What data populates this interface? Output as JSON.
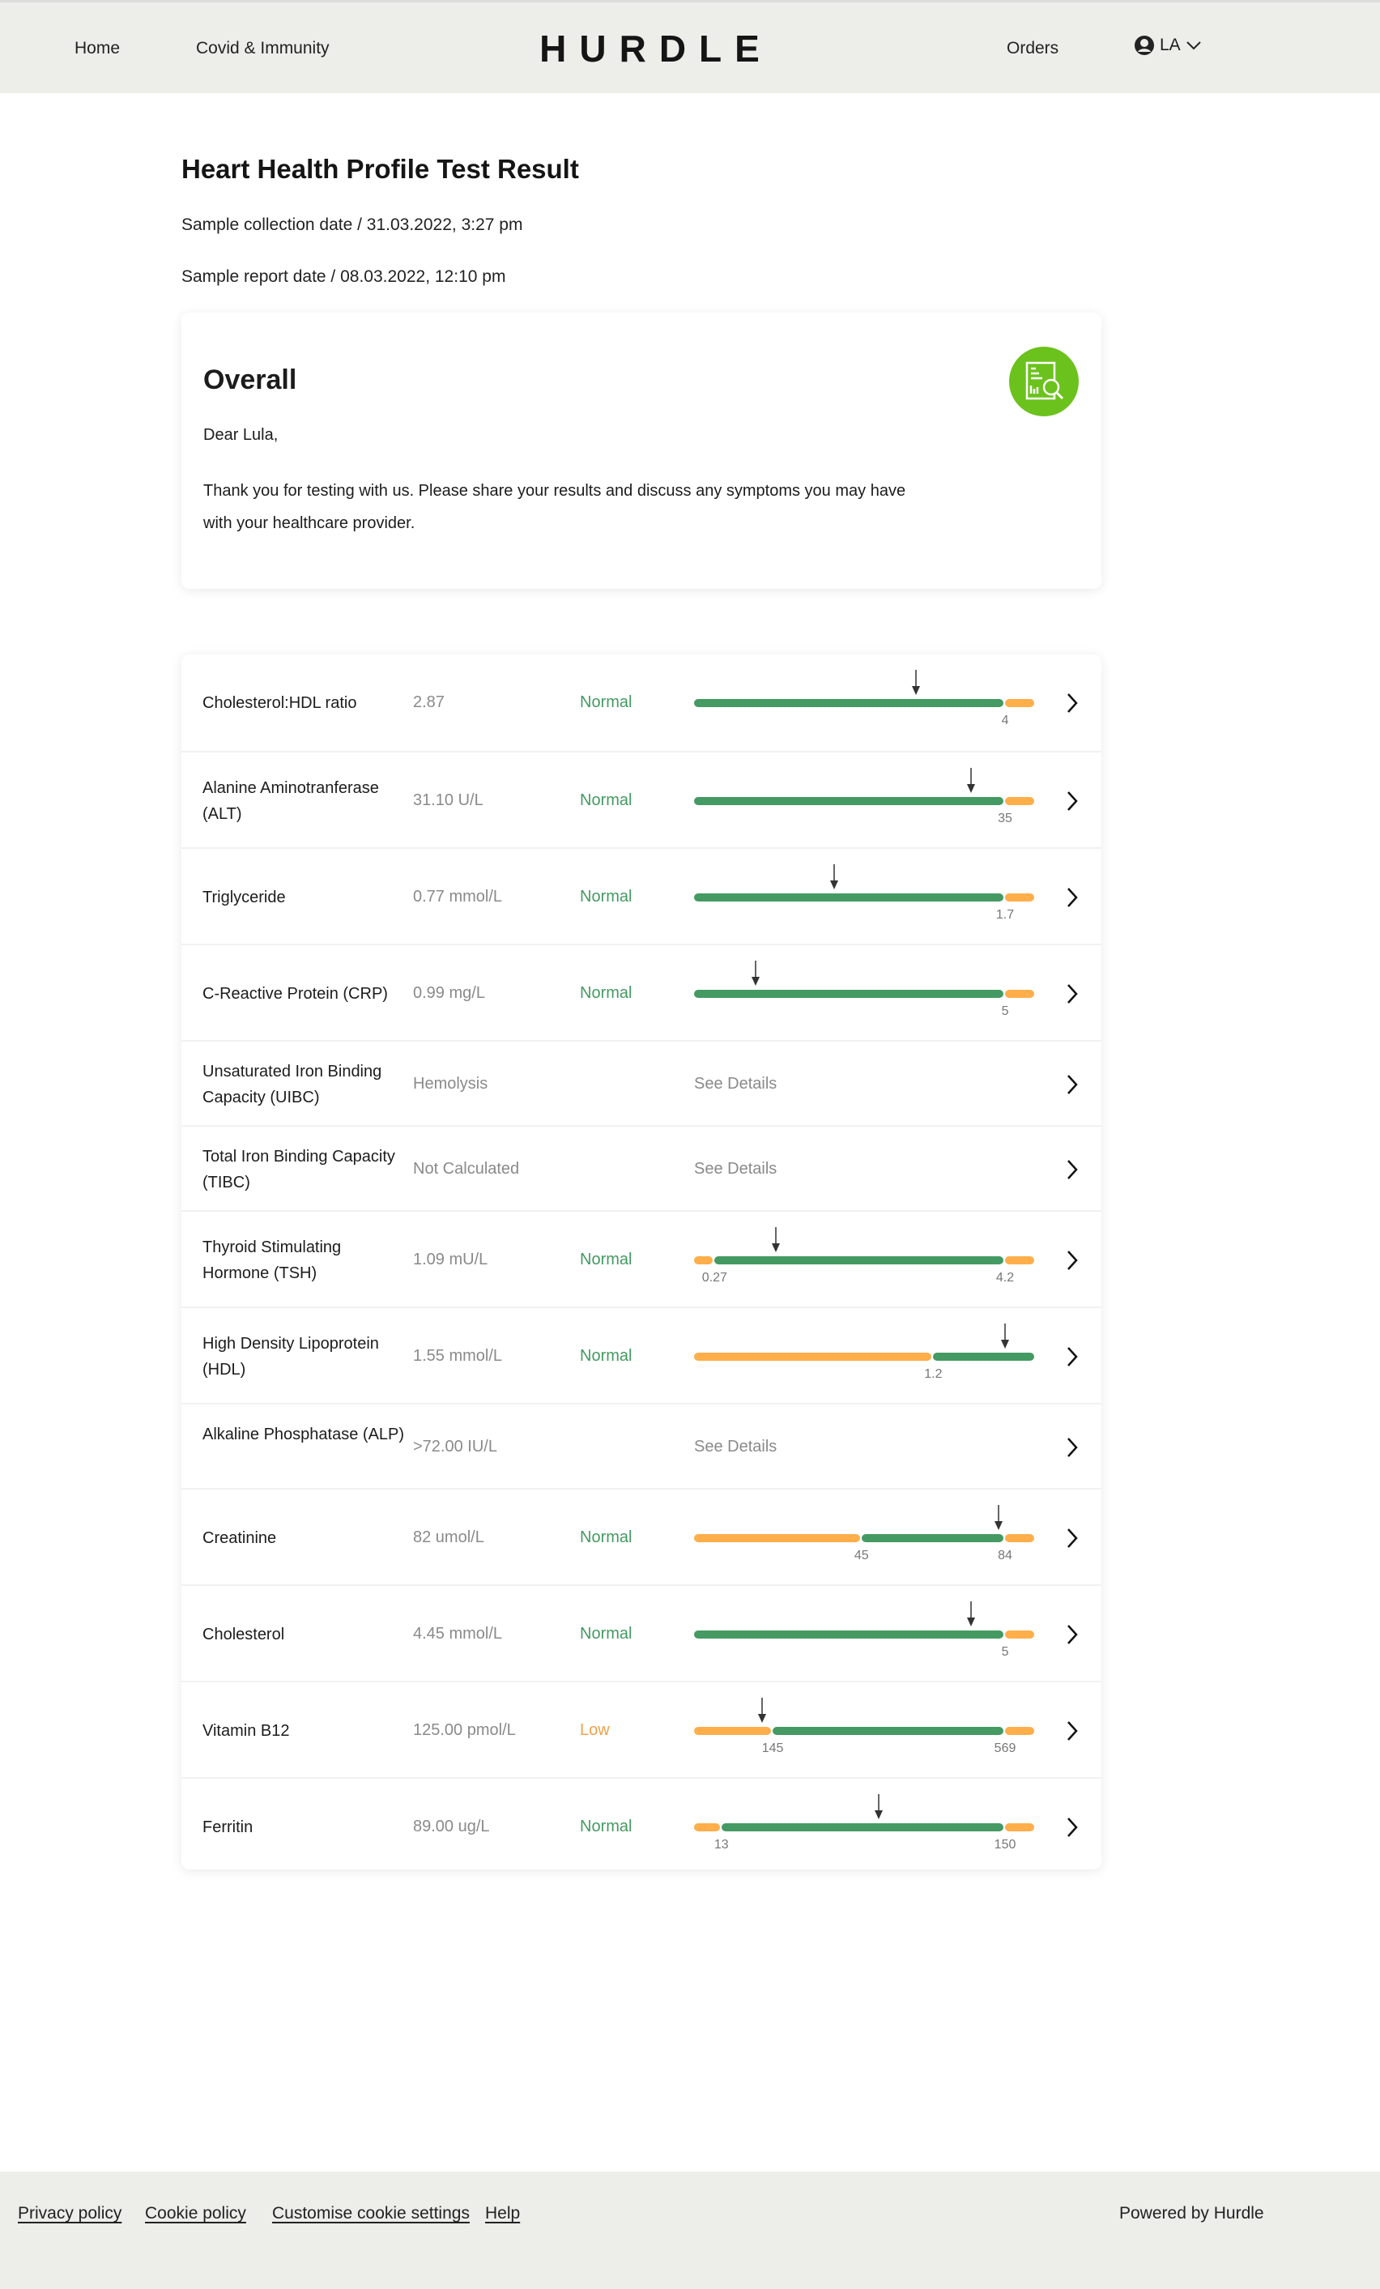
{
  "header": {
    "nav_left": [
      "Home",
      "Covid & Immunity"
    ],
    "logo": "HURDLE",
    "orders": "Orders",
    "user_initials": "LA"
  },
  "page": {
    "title": "Heart Health Profile Test Result",
    "collection_date": "Sample collection date / 31.03.2022, 3:27 pm",
    "report_date": "Sample report date / 08.03.2022, 12:10 pm"
  },
  "overall": {
    "heading": "Overall",
    "greeting": "Dear Lula,",
    "message": "Thank you for testing with us. Please share your results and discuss any symptoms you may have with your healthcare provider.",
    "icon": "report-search-icon"
  },
  "colors": {
    "normal": "#449a62",
    "out": "#ffae4a",
    "low_text": "#f0a04b",
    "badge": "#6cc21d"
  },
  "results": [
    {
      "name": "Cholesterol:HDL ratio",
      "value": "2.87",
      "status": "Normal",
      "segments": [
        [
          "n",
          0,
          0.91
        ],
        [
          "o",
          0.91,
          1
        ]
      ],
      "marker": 0.65,
      "ticks": [
        [
          "4",
          0.91
        ]
      ]
    },
    {
      "name": "Alanine Aminotranferase (ALT)",
      "value": "31.10 U/L",
      "status": "Normal",
      "segments": [
        [
          "n",
          0,
          0.91
        ],
        [
          "o",
          0.91,
          1
        ]
      ],
      "marker": 0.81,
      "ticks": [
        [
          "35",
          0.91
        ]
      ]
    },
    {
      "name": "Triglyceride",
      "value": "0.77 mmol/L",
      "status": "Normal",
      "segments": [
        [
          "n",
          0,
          0.91
        ],
        [
          "o",
          0.91,
          1
        ]
      ],
      "marker": 0.41,
      "ticks": [
        [
          "1.7",
          0.91
        ]
      ]
    },
    {
      "name": "C-Reactive Protein (CRP)",
      "value": "0.99 mg/L",
      "status": "Normal",
      "segments": [
        [
          "n",
          0,
          0.91
        ],
        [
          "o",
          0.91,
          1
        ]
      ],
      "marker": 0.18,
      "ticks": [
        [
          "5",
          0.91
        ]
      ]
    },
    {
      "name": "Unsaturated Iron Binding Capacity (UIBC)",
      "value": "Hemolysis",
      "details": "See Details"
    },
    {
      "name": "Total Iron Binding Capacity (TIBC)",
      "value": "Not Calculated",
      "details": "See Details"
    },
    {
      "name": "Thyroid Stimulating Hormone (TSH)",
      "value": "1.09 mU/L",
      "status": "Normal",
      "segments": [
        [
          "o",
          0,
          0.06
        ],
        [
          "n",
          0.06,
          0.91
        ],
        [
          "o",
          0.91,
          1
        ]
      ],
      "marker": 0.24,
      "ticks": [
        [
          "0.27",
          0.06
        ],
        [
          "4.2",
          0.91
        ]
      ]
    },
    {
      "name": "High Density Lipoprotein (HDL)",
      "value": "1.55 mmol/L",
      "status": "Normal",
      "segments": [
        [
          "o",
          0,
          0.7
        ],
        [
          "n",
          0.7,
          1
        ]
      ],
      "marker": 0.91,
      "ticks": [
        [
          "1.2",
          0.7
        ]
      ]
    },
    {
      "name": "Alkaline Phosphatase (ALP)",
      "value": ">72.00 IU/L",
      "details": "See Details"
    },
    {
      "name": "Creatinine",
      "value": "82 umol/L",
      "status": "Normal",
      "segments": [
        [
          "o",
          0,
          0.49
        ],
        [
          "n",
          0.49,
          0.91
        ],
        [
          "o",
          0.91,
          1
        ]
      ],
      "marker": 0.89,
      "ticks": [
        [
          "45",
          0.49
        ],
        [
          "84",
          0.91
        ]
      ]
    },
    {
      "name": "Cholesterol",
      "value": "4.45 mmol/L",
      "status": "Normal",
      "segments": [
        [
          "n",
          0,
          0.91
        ],
        [
          "o",
          0.91,
          1
        ]
      ],
      "marker": 0.81,
      "ticks": [
        [
          "5",
          0.91
        ]
      ]
    },
    {
      "name": "Vitamin B12",
      "value": "125.00 pmol/L",
      "status": "Low",
      "segments": [
        [
          "o",
          0,
          0.23
        ],
        [
          "n",
          0.23,
          0.91
        ],
        [
          "o",
          0.91,
          1
        ]
      ],
      "marker": 0.2,
      "ticks": [
        [
          "145",
          0.23
        ],
        [
          "569",
          0.91
        ]
      ]
    },
    {
      "name": "Ferritin",
      "value": "89.00 ug/L",
      "status": "Normal",
      "segments": [
        [
          "o",
          0,
          0.08
        ],
        [
          "n",
          0.08,
          0.91
        ],
        [
          "o",
          0.91,
          1
        ]
      ],
      "marker": 0.54,
      "ticks": [
        [
          "13",
          0.08
        ],
        [
          "150",
          0.91
        ]
      ]
    }
  ],
  "footer": {
    "links": [
      "Privacy policy",
      "Cookie policy",
      "Customise cookie settings",
      "Help"
    ],
    "powered": "Powered by Hurdle"
  }
}
